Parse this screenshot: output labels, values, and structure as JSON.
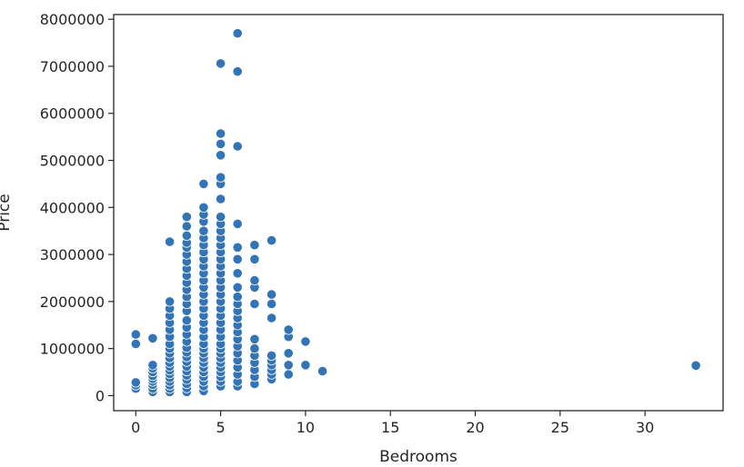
{
  "chart_data": {
    "type": "scatter",
    "xlabel": "Bedrooms",
    "ylabel": "Price",
    "xlim": [
      -1.3,
      34.6
    ],
    "ylim": [
      -320000,
      8100000
    ],
    "xticks": [
      0,
      5,
      10,
      15,
      20,
      25,
      30
    ],
    "yticks": [
      0,
      1000000,
      2000000,
      3000000,
      4000000,
      5000000,
      6000000,
      7000000,
      8000000
    ],
    "grid": false,
    "marker_color": "#3274b5",
    "series": [
      {
        "points": [
          [
            0,
            150000
          ],
          [
            0,
            220000
          ],
          [
            0,
            280000
          ],
          [
            0,
            1100000
          ],
          [
            0,
            1300000
          ],
          [
            1,
            80000
          ],
          [
            1,
            150000
          ],
          [
            1,
            230000
          ],
          [
            1,
            300000
          ],
          [
            1,
            360000
          ],
          [
            1,
            420000
          ],
          [
            1,
            500000
          ],
          [
            1,
            580000
          ],
          [
            1,
            650000
          ],
          [
            1,
            1220000
          ],
          [
            2,
            80000
          ],
          [
            2,
            150000
          ],
          [
            2,
            220000
          ],
          [
            2,
            300000
          ],
          [
            2,
            380000
          ],
          [
            2,
            460000
          ],
          [
            2,
            540000
          ],
          [
            2,
            620000
          ],
          [
            2,
            700000
          ],
          [
            2,
            800000
          ],
          [
            2,
            900000
          ],
          [
            2,
            1000000
          ],
          [
            2,
            1100000
          ],
          [
            2,
            1250000
          ],
          [
            2,
            1400000
          ],
          [
            2,
            1550000
          ],
          [
            2,
            1700000
          ],
          [
            2,
            1850000
          ],
          [
            2,
            2000000
          ],
          [
            2,
            3270000
          ],
          [
            3,
            80000
          ],
          [
            3,
            160000
          ],
          [
            3,
            250000
          ],
          [
            3,
            340000
          ],
          [
            3,
            430000
          ],
          [
            3,
            520000
          ],
          [
            3,
            620000
          ],
          [
            3,
            720000
          ],
          [
            3,
            820000
          ],
          [
            3,
            920000
          ],
          [
            3,
            1020000
          ],
          [
            3,
            1150000
          ],
          [
            3,
            1300000
          ],
          [
            3,
            1450000
          ],
          [
            3,
            1600000
          ],
          [
            3,
            1800000
          ],
          [
            3,
            1950000
          ],
          [
            3,
            2100000
          ],
          [
            3,
            2250000
          ],
          [
            3,
            2400000
          ],
          [
            3,
            2550000
          ],
          [
            3,
            2700000
          ],
          [
            3,
            2850000
          ],
          [
            3,
            3000000
          ],
          [
            3,
            3150000
          ],
          [
            3,
            3250000
          ],
          [
            3,
            3400000
          ],
          [
            3,
            3600000
          ],
          [
            3,
            3800000
          ],
          [
            4,
            100000
          ],
          [
            4,
            200000
          ],
          [
            4,
            300000
          ],
          [
            4,
            400000
          ],
          [
            4,
            500000
          ],
          [
            4,
            600000
          ],
          [
            4,
            700000
          ],
          [
            4,
            800000
          ],
          [
            4,
            900000
          ],
          [
            4,
            1000000
          ],
          [
            4,
            1100000
          ],
          [
            4,
            1250000
          ],
          [
            4,
            1400000
          ],
          [
            4,
            1550000
          ],
          [
            4,
            1700000
          ],
          [
            4,
            1850000
          ],
          [
            4,
            2000000
          ],
          [
            4,
            2150000
          ],
          [
            4,
            2300000
          ],
          [
            4,
            2450000
          ],
          [
            4,
            2600000
          ],
          [
            4,
            2750000
          ],
          [
            4,
            2900000
          ],
          [
            4,
            3050000
          ],
          [
            4,
            3200000
          ],
          [
            4,
            3350000
          ],
          [
            4,
            3500000
          ],
          [
            4,
            3700000
          ],
          [
            4,
            3850000
          ],
          [
            4,
            4000000
          ],
          [
            4,
            4500000
          ],
          [
            5,
            200000
          ],
          [
            5,
            300000
          ],
          [
            5,
            400000
          ],
          [
            5,
            500000
          ],
          [
            5,
            600000
          ],
          [
            5,
            700000
          ],
          [
            5,
            800000
          ],
          [
            5,
            900000
          ],
          [
            5,
            1000000
          ],
          [
            5,
            1100000
          ],
          [
            5,
            1250000
          ],
          [
            5,
            1400000
          ],
          [
            5,
            1550000
          ],
          [
            5,
            1700000
          ],
          [
            5,
            1850000
          ],
          [
            5,
            2000000
          ],
          [
            5,
            2150000
          ],
          [
            5,
            2300000
          ],
          [
            5,
            2450000
          ],
          [
            5,
            2600000
          ],
          [
            5,
            2750000
          ],
          [
            5,
            2900000
          ],
          [
            5,
            3050000
          ],
          [
            5,
            3200000
          ],
          [
            5,
            3350000
          ],
          [
            5,
            3500000
          ],
          [
            5,
            3650000
          ],
          [
            5,
            3800000
          ],
          [
            5,
            4180000
          ],
          [
            5,
            4500000
          ],
          [
            5,
            4640000
          ],
          [
            5,
            5110000
          ],
          [
            5,
            5350000
          ],
          [
            5,
            5570000
          ],
          [
            5,
            7060000
          ],
          [
            6,
            200000
          ],
          [
            6,
            300000
          ],
          [
            6,
            450000
          ],
          [
            6,
            600000
          ],
          [
            6,
            750000
          ],
          [
            6,
            900000
          ],
          [
            6,
            1050000
          ],
          [
            6,
            1200000
          ],
          [
            6,
            1350000
          ],
          [
            6,
            1500000
          ],
          [
            6,
            1650000
          ],
          [
            6,
            1800000
          ],
          [
            6,
            1950000
          ],
          [
            6,
            2100000
          ],
          [
            6,
            2300000
          ],
          [
            6,
            2600000
          ],
          [
            6,
            2900000
          ],
          [
            6,
            3150000
          ],
          [
            6,
            3650000
          ],
          [
            6,
            5300000
          ],
          [
            6,
            6890000
          ],
          [
            6,
            7700000
          ],
          [
            7,
            250000
          ],
          [
            7,
            400000
          ],
          [
            7,
            550000
          ],
          [
            7,
            700000
          ],
          [
            7,
            850000
          ],
          [
            7,
            1000000
          ],
          [
            7,
            1200000
          ],
          [
            7,
            1950000
          ],
          [
            7,
            2300000
          ],
          [
            7,
            2450000
          ],
          [
            7,
            2900000
          ],
          [
            7,
            3200000
          ],
          [
            8,
            350000
          ],
          [
            8,
            450000
          ],
          [
            8,
            550000
          ],
          [
            8,
            650000
          ],
          [
            8,
            750000
          ],
          [
            8,
            850000
          ],
          [
            8,
            1650000
          ],
          [
            8,
            1950000
          ],
          [
            8,
            2150000
          ],
          [
            8,
            3300000
          ],
          [
            9,
            450000
          ],
          [
            9,
            650000
          ],
          [
            9,
            900000
          ],
          [
            9,
            1250000
          ],
          [
            9,
            1400000
          ],
          [
            10,
            650000
          ],
          [
            10,
            1150000
          ],
          [
            11,
            520000
          ],
          [
            33,
            640000
          ]
        ]
      }
    ]
  }
}
